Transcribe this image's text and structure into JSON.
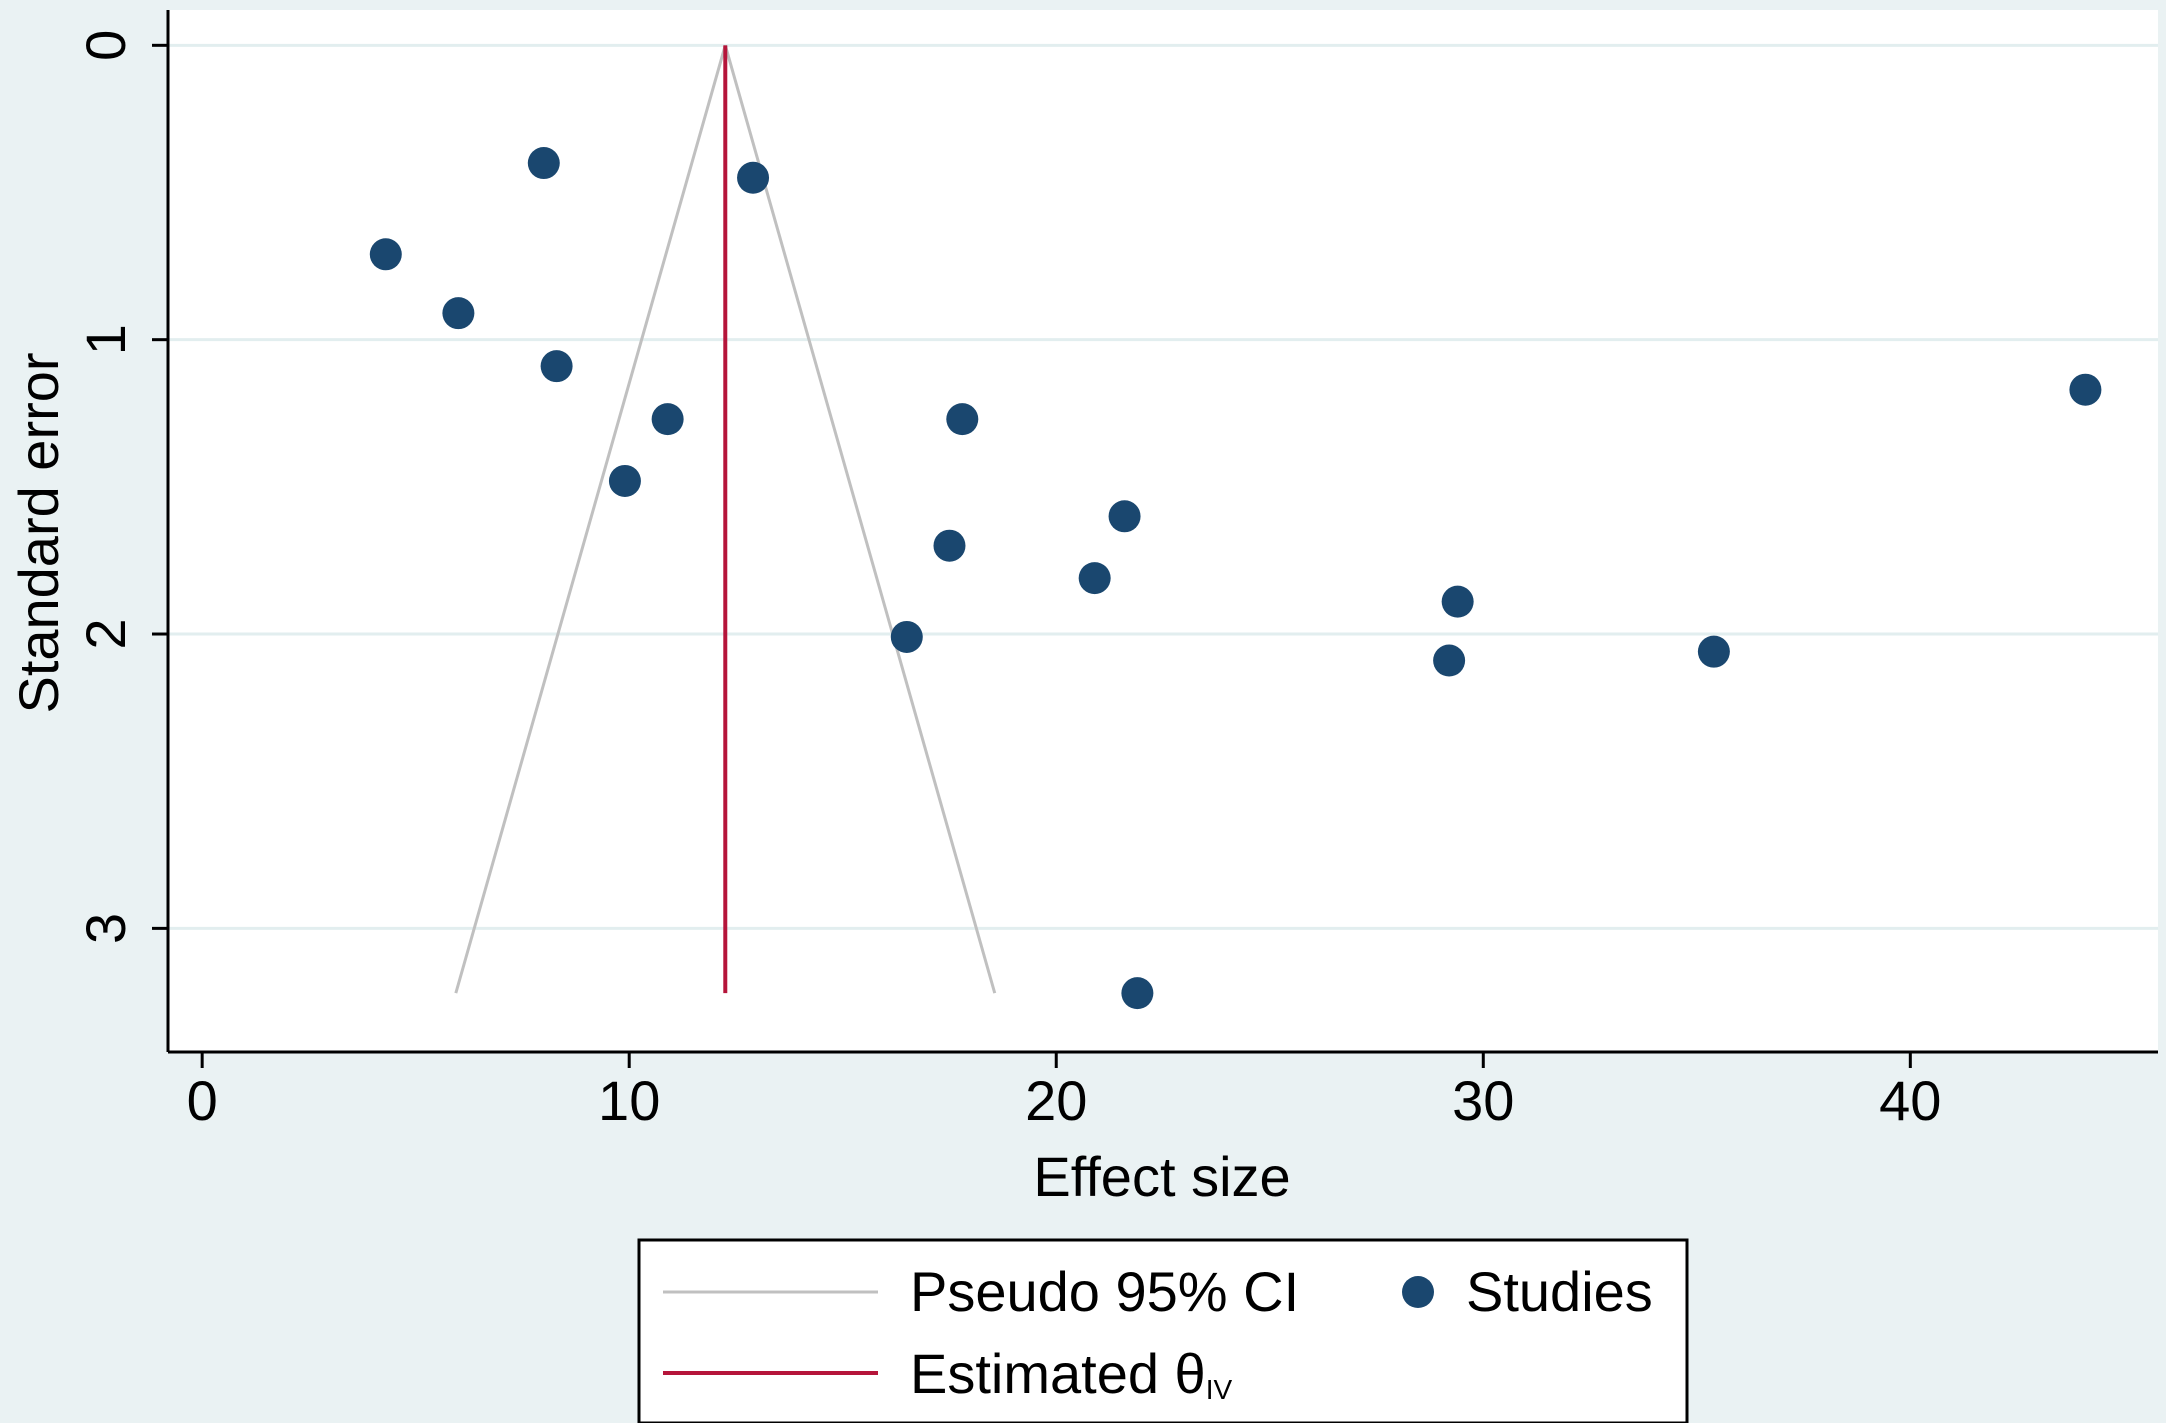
{
  "chart_data": {
    "type": "scatter",
    "title": "",
    "xlabel": "Effect size",
    "ylabel": "Standard error",
    "xlim": [
      -0.8,
      45.8
    ],
    "ylim": [
      3.42,
      -0.12
    ],
    "y_reversed": true,
    "grid": true,
    "legend_position": "bottom",
    "xticks": [
      0,
      10,
      20,
      30,
      40
    ],
    "xtick_labels": [
      "0",
      "10",
      "20",
      "30",
      "40"
    ],
    "yticks": [
      0,
      1,
      2,
      3
    ],
    "ytick_labels": [
      "0",
      "1",
      "2",
      "3"
    ],
    "series": [
      {
        "name": "Studies",
        "kind": "scatter",
        "points": [
          [
            8.0,
            0.4
          ],
          [
            12.9,
            0.45
          ],
          [
            4.3,
            0.71
          ],
          [
            6.0,
            0.91
          ],
          [
            8.3,
            1.09
          ],
          [
            10.9,
            1.27
          ],
          [
            9.9,
            1.48
          ],
          [
            17.8,
            1.27
          ],
          [
            44.1,
            1.17
          ],
          [
            21.6,
            1.6
          ],
          [
            17.5,
            1.7
          ],
          [
            20.9,
            1.81
          ],
          [
            29.4,
            1.89
          ],
          [
            16.5,
            2.01
          ],
          [
            29.2,
            2.09
          ],
          [
            35.4,
            2.06
          ],
          [
            21.9,
            3.22
          ]
        ]
      },
      {
        "name": "Pseudo 95% CI",
        "kind": "funnel",
        "apex": [
          12.25,
          0
        ],
        "base_se": 3.22,
        "base_left": 5.94,
        "base_right": 18.56
      },
      {
        "name": "Estimated θ",
        "name_subscript": "IV",
        "kind": "vline",
        "x": 12.25,
        "se_range": [
          0,
          3.22
        ]
      }
    ],
    "colors": {
      "background": "#eaf2f3",
      "plot_background": "#ffffff",
      "gridline": "#e2eeef",
      "axis": "#000000",
      "studies": "#1a476f",
      "ci": "#c0c0c0",
      "estimate": "#b5153a"
    }
  }
}
